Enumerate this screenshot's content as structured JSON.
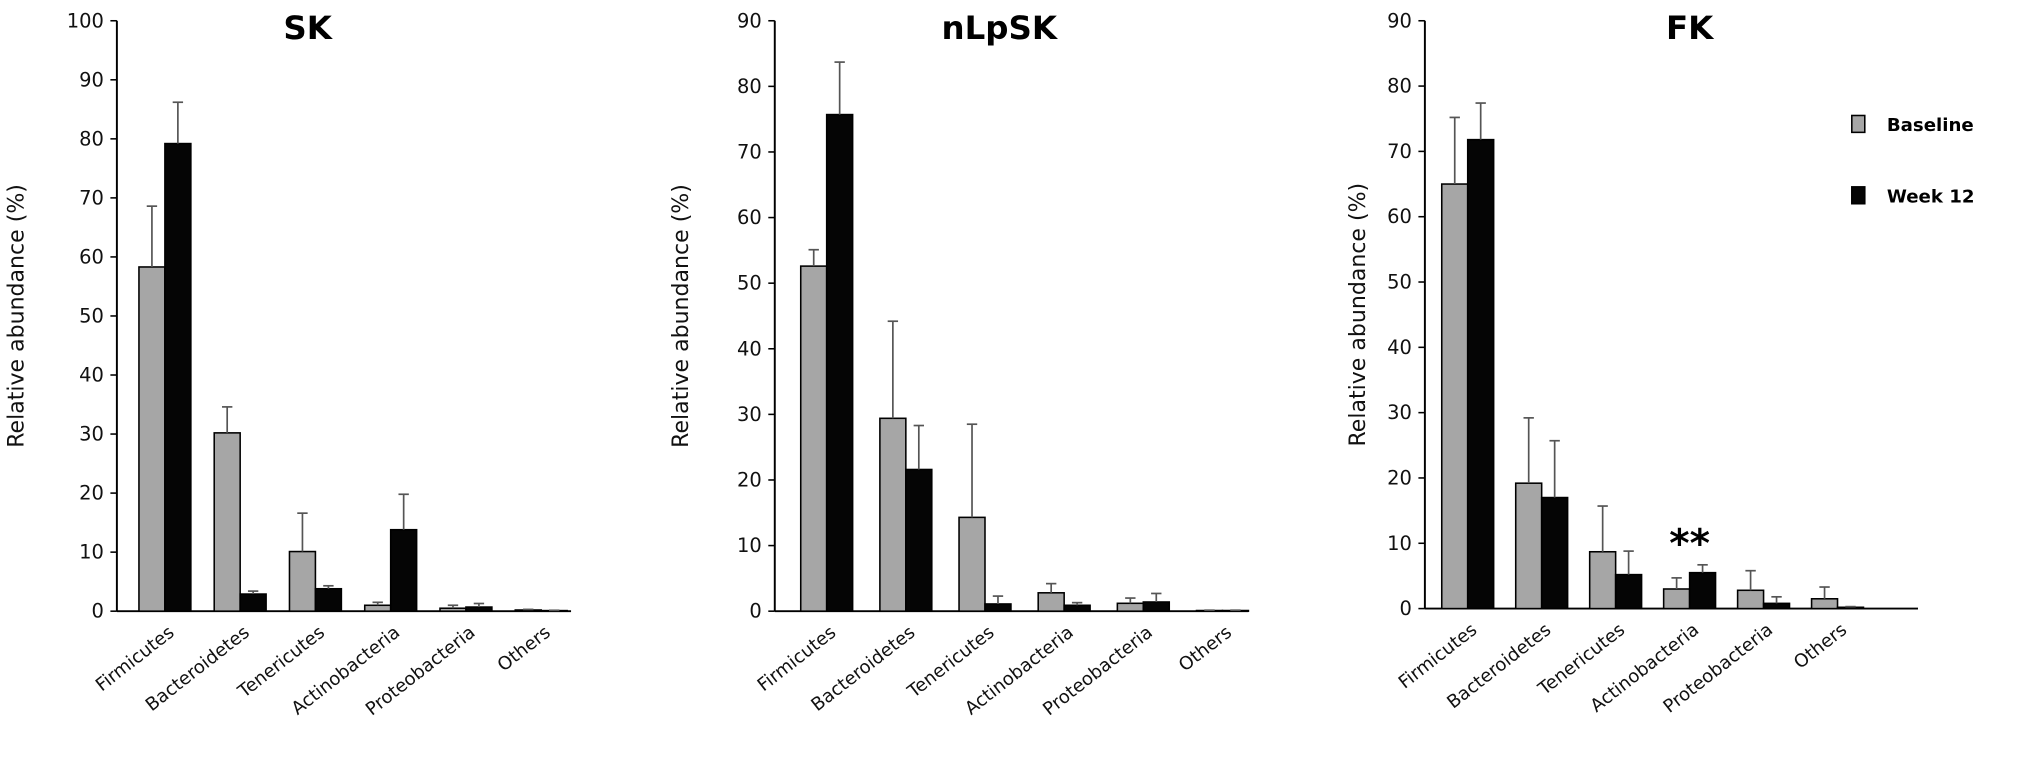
{
  "chart_data": [
    {
      "type": "bar",
      "title": "SK",
      "ylabel": "Relative abundance (%)",
      "xlabel": "",
      "ylim": [
        0,
        100
      ],
      "yticks": [
        0,
        10,
        20,
        30,
        40,
        50,
        60,
        70,
        80,
        90,
        100
      ],
      "categories": [
        "Firmicutes",
        "Bacteroidetes",
        "Tenericutes",
        "Actinobacteria",
        "Proteobacteria",
        "Others"
      ],
      "series": [
        {
          "name": "Baseline",
          "values": [
            58.3,
            30.2,
            10.1,
            1.0,
            0.5,
            0.2
          ],
          "errors": [
            10.3,
            4.4,
            6.5,
            0.5,
            0.5,
            0.1
          ]
        },
        {
          "name": "Week 12",
          "values": [
            79.2,
            2.9,
            3.8,
            13.8,
            0.7,
            0.1
          ],
          "errors": [
            7.0,
            0.5,
            0.5,
            6.0,
            0.6,
            0.05
          ]
        }
      ],
      "annotations": []
    },
    {
      "type": "bar",
      "title": "nLpSK",
      "ylabel": "Relative abundance (%)",
      "xlabel": "",
      "ylim": [
        0,
        90
      ],
      "yticks": [
        0,
        10,
        20,
        30,
        40,
        50,
        60,
        70,
        80,
        90
      ],
      "categories": [
        "Firmicutes",
        "Bacteroidetes",
        "Tenericutes",
        "Actinobacteria",
        "Proteobacteria",
        "Others"
      ],
      "series": [
        {
          "name": "Baseline",
          "values": [
            52.6,
            29.4,
            14.3,
            2.8,
            1.2,
            0.1
          ],
          "errors": [
            2.5,
            14.8,
            14.2,
            1.4,
            0.8,
            0.05
          ]
        },
        {
          "name": "Week 12",
          "values": [
            75.7,
            21.6,
            1.1,
            0.9,
            1.4,
            0.1
          ],
          "errors": [
            8.0,
            6.7,
            1.2,
            0.4,
            1.3,
            0.05
          ]
        }
      ],
      "annotations": []
    },
    {
      "type": "bar",
      "title": "FK",
      "ylabel": "Relative abundance (%)",
      "xlabel": "",
      "ylim": [
        0,
        90
      ],
      "yticks": [
        0,
        10,
        20,
        30,
        40,
        50,
        60,
        70,
        80,
        90
      ],
      "categories": [
        "Firmicutes",
        "Bacteroidetes",
        "Tenericutes",
        "Actinobacteria",
        "Proteobacteria",
        "Others"
      ],
      "series": [
        {
          "name": "Baseline",
          "values": [
            65.0,
            19.2,
            8.7,
            3.0,
            2.8,
            1.5
          ],
          "errors": [
            10.2,
            10.0,
            7.0,
            1.7,
            3.0,
            1.8
          ]
        },
        {
          "name": "Week 12",
          "values": [
            71.8,
            17.0,
            5.2,
            5.5,
            0.8,
            0.2
          ],
          "errors": [
            5.6,
            8.7,
            3.6,
            1.2,
            1.0,
            0.1
          ]
        }
      ],
      "annotations": [
        {
          "category": "Actinobacteria",
          "text": "**"
        }
      ],
      "legend": {
        "position": "top-right",
        "entries": [
          "Baseline",
          "Week 12"
        ]
      }
    }
  ],
  "colors": {
    "baseline": "#a6a6a6",
    "week12": "#050505",
    "error_bar": "#555555"
  }
}
